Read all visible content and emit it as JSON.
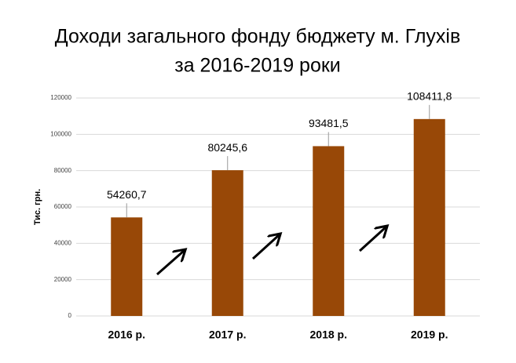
{
  "chart_data": {
    "type": "bar",
    "title": "Доходи загального фонду бюджету м. Глухів",
    "subtitle": "за 2016-2019 роки",
    "y_label": "Тис. грн.",
    "categories": [
      "2016 р.",
      "2017 р.",
      "2018 р.",
      "2019 р."
    ],
    "values": [
      54260.7,
      80245.6,
      93481.5,
      108411.8
    ],
    "value_labels": [
      "54260,7",
      "80245,6",
      "93481,5",
      "108411,8"
    ],
    "color": "#984807",
    "ylim": [
      0,
      120000
    ],
    "yticks": [
      0,
      20000,
      40000,
      60000,
      80000,
      100000,
      120000
    ],
    "grid": true
  }
}
